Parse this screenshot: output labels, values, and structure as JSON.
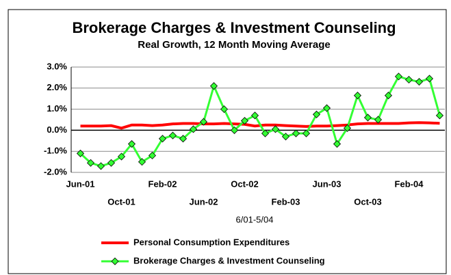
{
  "chart_data": {
    "type": "line",
    "title": "Brokerage Charges & Investment Counseling",
    "subtitle": "Real Growth, 12 Month Moving Average",
    "x_label": "6/01-5/04",
    "categories": [
      "Jun-01",
      null,
      null,
      null,
      "Oct-01",
      null,
      null,
      null,
      "Feb-02",
      null,
      null,
      null,
      "Jun-02",
      null,
      null,
      null,
      "Oct-02",
      null,
      null,
      null,
      "Feb-03",
      null,
      null,
      null,
      "Jun-03",
      null,
      null,
      null,
      "Oct-03",
      null,
      null,
      null,
      "Feb-04",
      null,
      null,
      null
    ],
    "series": [
      {
        "name": "Personal Consumption Expenditures",
        "color": "#ff0000",
        "marker": "none",
        "values": [
          0.2,
          0.2,
          0.2,
          0.22,
          0.1,
          0.25,
          0.25,
          0.22,
          0.25,
          0.3,
          0.32,
          0.32,
          0.3,
          0.3,
          0.32,
          0.3,
          0.28,
          0.2,
          0.25,
          0.25,
          0.22,
          0.2,
          0.18,
          0.2,
          0.2,
          0.22,
          0.25,
          0.3,
          0.32,
          0.32,
          0.32,
          0.32,
          0.35,
          0.36,
          0.35,
          0.33
        ]
      },
      {
        "name": "Brokerage Charges & Investment Counseling",
        "color": "#33ff33",
        "marker": "diamond",
        "values": [
          -1.1,
          -1.55,
          -1.7,
          -1.55,
          -1.25,
          -0.65,
          -1.5,
          -1.2,
          -0.4,
          -0.25,
          -0.4,
          0.05,
          0.4,
          2.1,
          1.0,
          0.0,
          0.45,
          0.7,
          -0.15,
          0.05,
          -0.3,
          -0.15,
          -0.15,
          0.75,
          1.05,
          -0.65,
          0.1,
          1.65,
          0.6,
          0.5,
          1.65,
          2.55,
          2.4,
          2.3,
          2.45,
          0.7
        ]
      }
    ],
    "ylim": [
      -2,
      3
    ],
    "yticks": [
      {
        "value": -2,
        "label": "-2.0%"
      },
      {
        "value": -1,
        "label": "-1.0%"
      },
      {
        "value": 0,
        "label": "0.0%"
      },
      {
        "value": 1,
        "label": "1.0%"
      },
      {
        "value": 2,
        "label": "2.0%"
      },
      {
        "value": 3,
        "label": "3.0%"
      }
    ],
    "grid": true,
    "legend": "bottom"
  }
}
